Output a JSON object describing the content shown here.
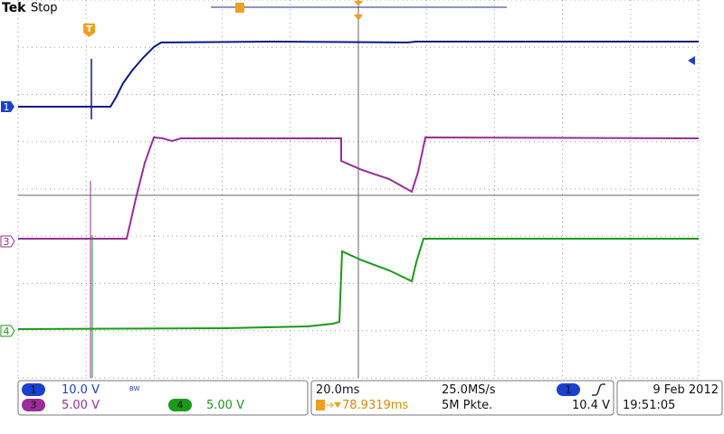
{
  "header": {
    "brand": "Tek",
    "status": "Stop"
  },
  "markers": {
    "trigger": "T",
    "channel_1": "1",
    "channel_3": "3",
    "channel_4": "4"
  },
  "readout": {
    "channel_1": {
      "number": "1",
      "scale": "10.0 V",
      "bandwidth": "BW"
    },
    "channel_3": {
      "number": "3",
      "scale": "5.00 V"
    },
    "channel_4": {
      "number": "4",
      "scale": "5.00 V"
    },
    "timebase": "20.0ms",
    "sample_rate": "25.0MS/s",
    "trigger_position": "78.9319ms",
    "record_length": "5M Pkte.",
    "trigger_source": "1",
    "trigger_level": "10.4 V",
    "date": "9 Feb 2012",
    "time": "19:51:05"
  }
}
